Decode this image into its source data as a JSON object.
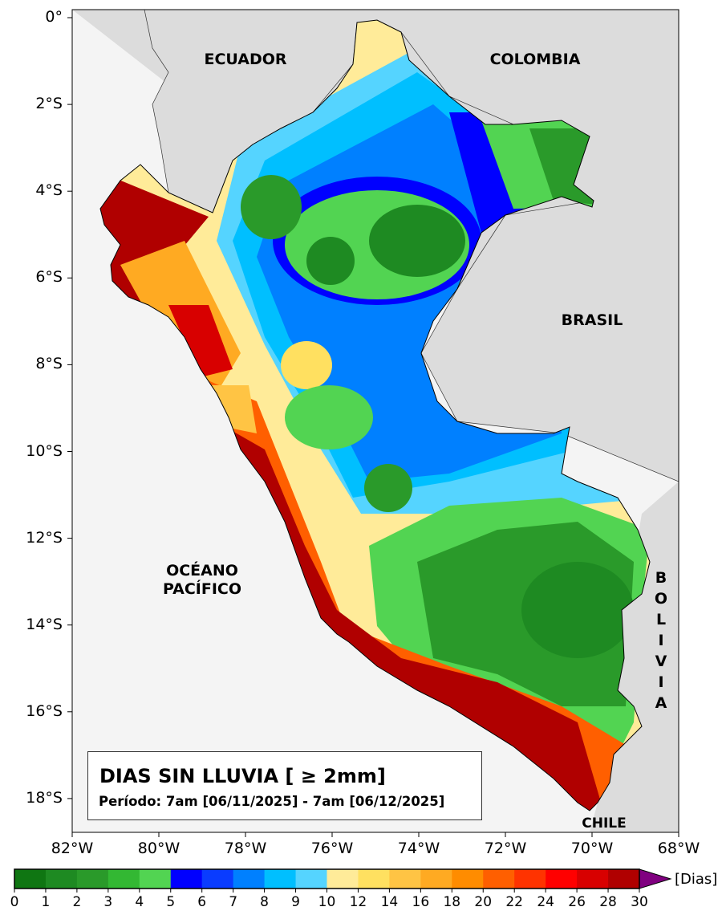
{
  "title": "DIAS SIN LLUVIA [ ≥ 2mm]",
  "period": "Período: 7am [06/11/2025] - 7am [06/12/2025]",
  "labels": {
    "ecuador": "ECUADOR",
    "colombia": "COLOMBIA",
    "brasil": "BRASIL",
    "oceano": "OCÉANO",
    "pacifico": "PACÍFICO",
    "bolivia": "B O L I V I A",
    "chile": "CHILE"
  },
  "lat_ticks": [
    "0°",
    "2°S",
    "4°S",
    "6°S",
    "8°S",
    "10°S",
    "12°S",
    "14°S",
    "16°S",
    "18°S"
  ],
  "lon_ticks": [
    "82°W",
    "80°W",
    "78°W",
    "76°W",
    "74°W",
    "72°W",
    "70°W",
    "68°W"
  ],
  "colorbar": {
    "unit": "[Dias]",
    "ticks": [
      "0",
      "1",
      "2",
      "3",
      "4",
      "5",
      "6",
      "7",
      "8",
      "9",
      "10",
      "12",
      "14",
      "16",
      "18",
      "20",
      "22",
      "24",
      "26",
      "28",
      "30"
    ],
    "colors": [
      "#0f7612",
      "#1e8a22",
      "#2a9a2a",
      "#33b833",
      "#52d452",
      "#0000ff",
      "#0a3cff",
      "#0080ff",
      "#00bfff",
      "#55d4ff",
      "#ffeb99",
      "#ffe060",
      "#ffc444",
      "#ffaa22",
      "#ff8c00",
      "#ff5f00",
      "#ff3300",
      "#ff0000",
      "#d80000",
      "#b00000"
    ],
    "over_color": "#800080"
  }
}
